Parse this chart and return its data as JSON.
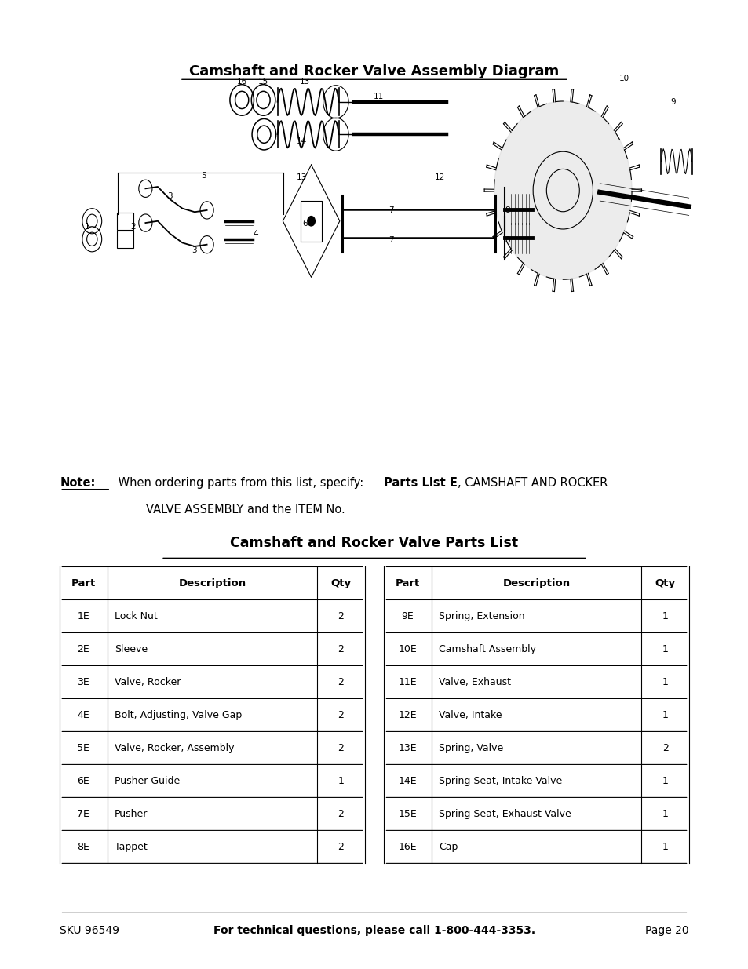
{
  "title_diagram": "Camshaft and Rocker Valve Assembly Diagram",
  "title_parts": "Camshaft and Rocker Valve Parts List",
  "footer_left": "SKU 96549",
  "footer_center": "For technical questions, please call 1-800-444-3353.",
  "footer_right": "Page 20",
  "table_left": {
    "headers": [
      "Part",
      "Description",
      "Qty"
    ],
    "rows": [
      [
        "1E",
        "Lock Nut",
        "2"
      ],
      [
        "2E",
        "Sleeve",
        "2"
      ],
      [
        "3E",
        "Valve, Rocker",
        "2"
      ],
      [
        "4E",
        "Bolt, Adjusting, Valve Gap",
        "2"
      ],
      [
        "5E",
        "Valve, Rocker, Assembly",
        "2"
      ],
      [
        "6E",
        "Pusher Guide",
        "1"
      ],
      [
        "7E",
        "Pusher",
        "2"
      ],
      [
        "8E",
        "Tappet",
        "2"
      ]
    ]
  },
  "table_right": {
    "headers": [
      "Part",
      "Description",
      "Qty"
    ],
    "rows": [
      [
        "9E",
        "Spring, Extension",
        "1"
      ],
      [
        "10E",
        "Camshaft Assembly",
        "1"
      ],
      [
        "11E",
        "Valve, Exhaust",
        "1"
      ],
      [
        "12E",
        "Valve, Intake",
        "1"
      ],
      [
        "13E",
        "Spring, Valve",
        "2"
      ],
      [
        "14E",
        "Spring Seat, Intake Valve",
        "1"
      ],
      [
        "15E",
        "Spring Seat, Exhaust Valve",
        "1"
      ],
      [
        "16E",
        "Cap",
        "1"
      ]
    ]
  },
  "bg_color": "#ffffff",
  "text_color": "#000000"
}
